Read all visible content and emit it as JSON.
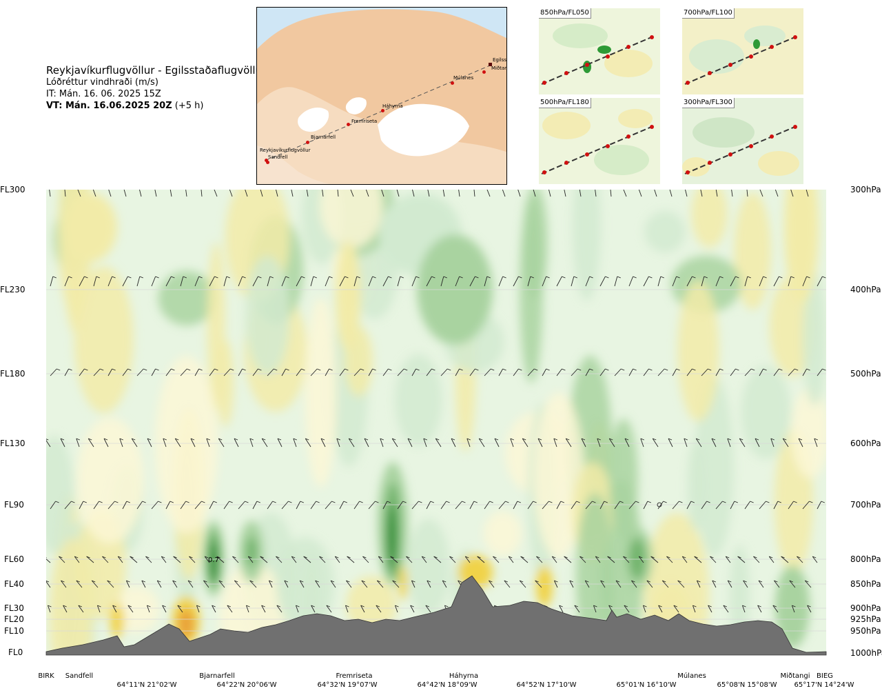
{
  "header": {
    "title": "Reykjavíkurflugvöllur - Egilsstaðaflugvöllur",
    "subtitle": "Lóðréttur vindhraði (m/s)",
    "issue_time": "IT: Mán. 16. 06. 2025 15Z",
    "valid_time_bold": "VT: Mán. 16.06.2025 20Z",
    "valid_time_offset": "(+5 h)"
  },
  "map_inset": {
    "places": [
      "Reykjavíkurflugvöllur",
      "Sandfell",
      "Bjarnarfell",
      "Fremriseta",
      "Háhyrna",
      "Múlanes",
      "Miðtangi",
      "Egilssta"
    ]
  },
  "mini_maps": [
    {
      "label": "850hPa/FL050"
    },
    {
      "label": "700hPa/FL100"
    },
    {
      "label": "500hPa/FL180"
    },
    {
      "label": "300hPa/FL300"
    }
  ],
  "colors": {
    "strong_up": "#1e8a2a",
    "moderate_up": "#71b46c",
    "weak_up": "#a9d3a0",
    "very_weak_up": "#d2ead0",
    "neutral": "#e8f5e2",
    "weak_down": "#f2eba8",
    "moderate_down": "#f0d34a",
    "strong_down": "#e9a33a",
    "terrain": "#707070"
  },
  "chart_data": {
    "type": "heatmap",
    "title": "Lóðréttur vindhraði (m/s)",
    "levels": [
      {
        "fl": "FL300",
        "hpa": "300hPa"
      },
      {
        "fl": "FL230",
        "hpa": "400hPa"
      },
      {
        "fl": "FL180",
        "hpa": "500hPa"
      },
      {
        "fl": "FL130",
        "hpa": "600hPa"
      },
      {
        "fl": "FL90",
        "hpa": "700hPa"
      },
      {
        "fl": "FL60",
        "hpa": "800hPa"
      },
      {
        "fl": "FL40",
        "hpa": "850hPa"
      },
      {
        "fl": "FL30",
        "hpa": "900hPa"
      },
      {
        "fl": "FL20",
        "hpa": "925hPa"
      },
      {
        "fl": "FL10",
        "hpa": "950hPa"
      },
      {
        "fl": "FL0",
        "hpa": "1000hPa"
      }
    ],
    "locations": [
      "BIRK",
      "Sandfell",
      "Bjarnarfell",
      "Fremriseta",
      "Háhyrna",
      "Múlanes",
      "Miðtangi",
      "BIEG"
    ],
    "coordinates": [
      "64°11'N 21°02'W",
      "64°22'N 20°06'W",
      "64°32'N 19°07'W",
      "64°42'N 18°09'W",
      "64°52'N 17°10'W",
      "65°01'N 16°10'W",
      "65°08'N 15°08'W",
      "65°17'N 14°24'W"
    ],
    "annotations": [
      "0.7"
    ]
  }
}
